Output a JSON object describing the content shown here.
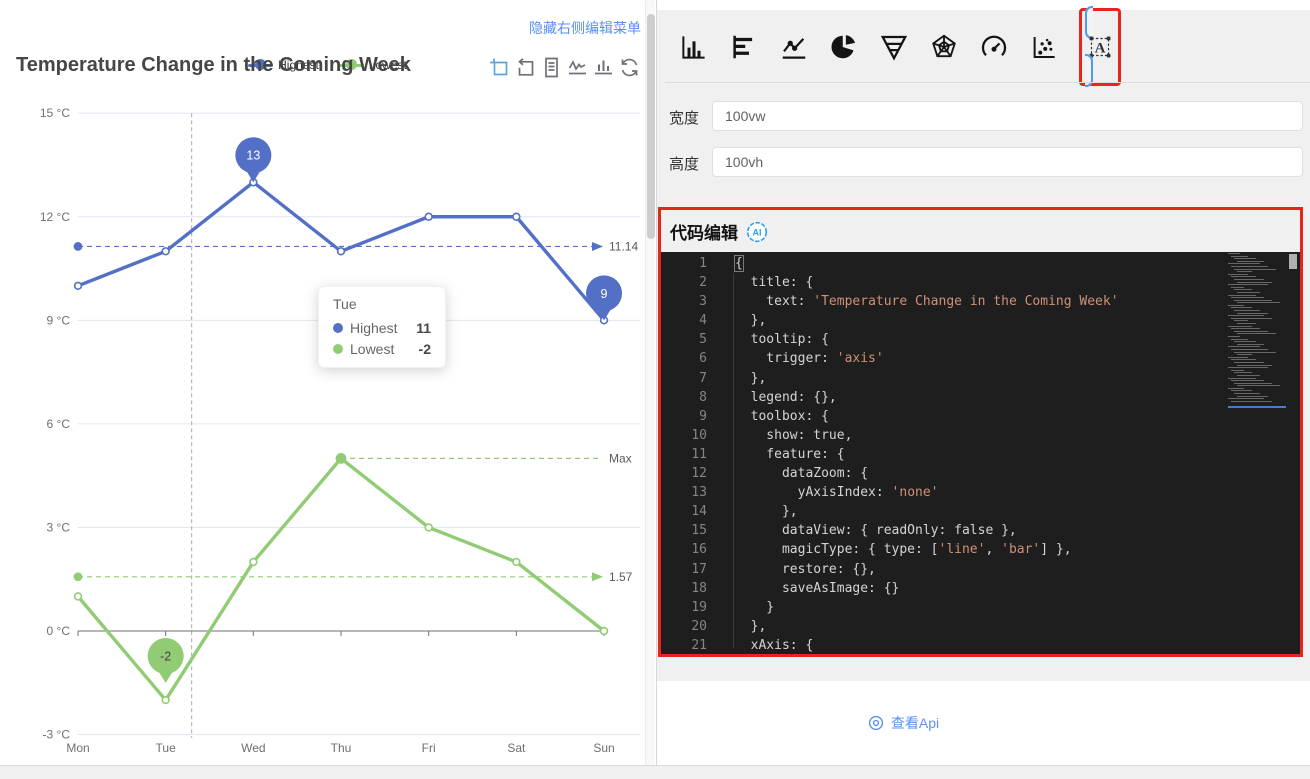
{
  "left_panel": {
    "hide_menu_link": "隐藏右侧编辑菜单"
  },
  "chart_data": {
    "type": "line",
    "title": "Temperature Change in the Coming Week",
    "categories": [
      "Mon",
      "Tue",
      "Wed",
      "Thu",
      "Fri",
      "Sat",
      "Sun"
    ],
    "y_axis": {
      "unit": "°C",
      "ticks": [
        15,
        12,
        9,
        6,
        3,
        0,
        -3
      ],
      "min": -3,
      "max": 15,
      "tick_label_suffix": " °C"
    },
    "series": [
      {
        "name": "Highest",
        "color": "#5470c6",
        "values": [
          10,
          11,
          13,
          11,
          12,
          12,
          9
        ],
        "avg_markline": {
          "value": 11.14,
          "label": "11.14"
        },
        "markpoints": [
          {
            "category": "Wed",
            "value": 13,
            "label": "13"
          },
          {
            "category": "Sun",
            "value": 9,
            "label": "9"
          }
        ]
      },
      {
        "name": "Lowest",
        "color": "#91cc75",
        "values": [
          1,
          -2,
          2,
          5,
          3,
          2,
          0
        ],
        "avg_markline": {
          "value": 1.57,
          "label": "1.57"
        },
        "max_markline": {
          "category": "Thu",
          "value": 5,
          "label": "Max"
        },
        "markpoints": [
          {
            "category": "Tue",
            "value": -2,
            "label": "-2"
          }
        ]
      }
    ],
    "legend": {
      "items": [
        "Highest",
        "Lowest"
      ],
      "position": "top-center"
    },
    "grid_lines": true,
    "axis_pointer_category": "Tue",
    "tooltip": {
      "title": "Tue",
      "rows": [
        {
          "series": "Highest",
          "value": "11",
          "color": "#5470c6"
        },
        {
          "series": "Lowest",
          "value": "-2",
          "color": "#91cc75"
        }
      ]
    }
  },
  "toolbox": {
    "icons": [
      {
        "name": "data-zoom",
        "active": true
      },
      {
        "name": "data-zoom-reset",
        "active": false
      },
      {
        "name": "data-view",
        "active": false
      },
      {
        "name": "magic-type-line",
        "active": false
      },
      {
        "name": "magic-type-bar",
        "active": false
      },
      {
        "name": "restore",
        "active": false
      },
      {
        "name": "save-as-image",
        "active": false
      }
    ]
  },
  "right_panel": {
    "chart_type_icons": [
      "bar-chart",
      "horizontal-bar-chart",
      "line-chart",
      "pie-chart",
      "funnel-chart",
      "radar-chart",
      "gauge-chart",
      "scatter-chart",
      "text-component"
    ],
    "selected_icon": "text-component",
    "fields": [
      {
        "label": "宽度",
        "value": "100vw"
      },
      {
        "label": "高度",
        "value": "100vh"
      }
    ],
    "code_editor": {
      "header": "代码编辑",
      "ai_badge": "AI",
      "lines": [
        "{",
        "  title: {",
        "    text: 'Temperature Change in the Coming Week'",
        "  },",
        "  tooltip: {",
        "    trigger: 'axis'",
        "  },",
        "  legend: {},",
        "  toolbox: {",
        "    show: true,",
        "    feature: {",
        "      dataZoom: {",
        "        yAxisIndex: 'none'",
        "      },",
        "      dataView: { readOnly: false },",
        "      magicType: { type: ['line', 'bar'] },",
        "      restore: {},",
        "      saveAsImage: {}",
        "    }",
        "  },",
        "  xAxis: {"
      ]
    },
    "api_link": "查看Api"
  },
  "colors": {
    "series_blue": "#5470c6",
    "series_green": "#91cc75",
    "link_blue": "#5a8ff2",
    "annotation_red": "#e8241c",
    "toolbox_active_blue": "#57a7dd",
    "editor_background": "#1e1e1e",
    "string_token": "#ce9178"
  }
}
